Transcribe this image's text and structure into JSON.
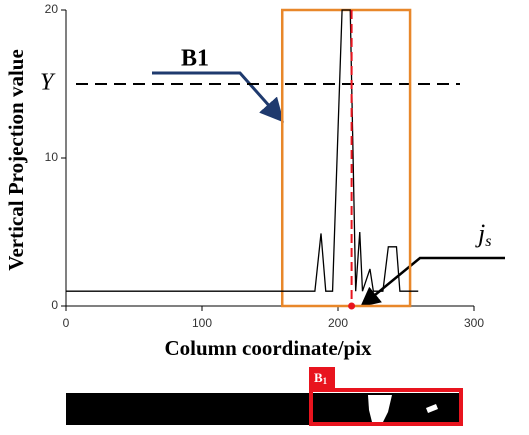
{
  "chart_data": {
    "type": "line",
    "x": [
      0,
      183,
      187.5,
      191,
      196,
      203,
      209,
      213,
      216,
      218,
      223.5,
      226,
      233,
      237,
      243,
      245.5,
      259
    ],
    "values": [
      1,
      1,
      4.9,
      1,
      1,
      20,
      20,
      1,
      5,
      1,
      2.5,
      1,
      1,
      4,
      4,
      1,
      1
    ],
    "color": "#000000",
    "xlim": [
      0,
      300
    ],
    "ylim": [
      0,
      20
    ],
    "xticks": [
      0,
      100,
      200,
      300
    ],
    "yticks": [
      0,
      10,
      20
    ],
    "xlabel": "Column coordinate/pix",
    "ylabel": "Vertical  Projection value",
    "threshold": {
      "value": 15,
      "label": "Y"
    },
    "marker_x": 210,
    "box": [
      159,
      253
    ],
    "box_label": "B1",
    "marker_label": {
      "text": "j",
      "sub": "s"
    },
    "strip_label": {
      "text": "B",
      "sub": "1"
    }
  }
}
